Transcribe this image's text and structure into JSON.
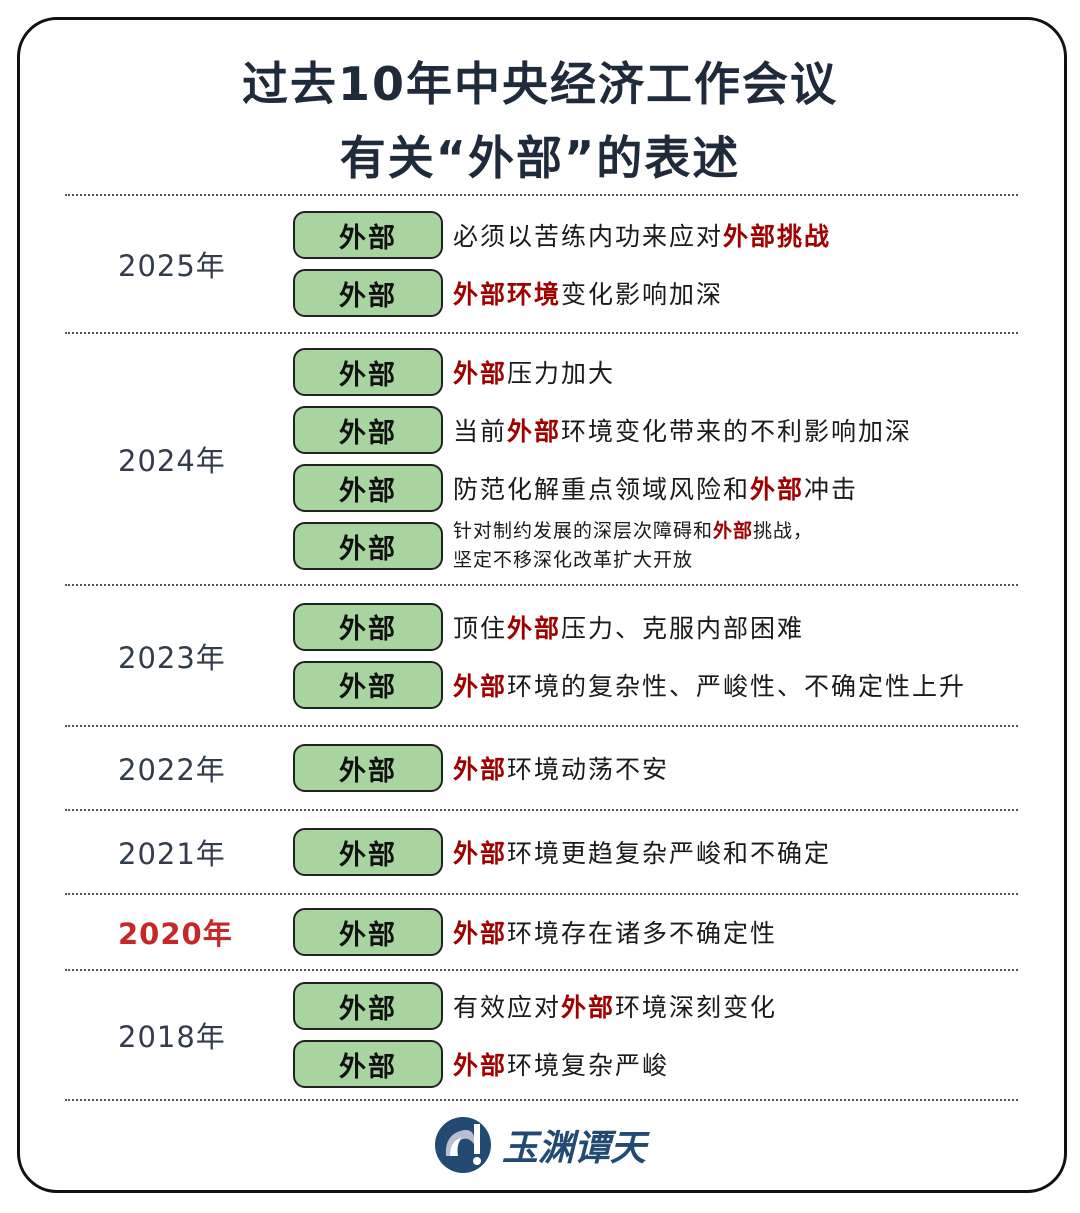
{
  "title": {
    "line1": "过去10年中央经济工作会议",
    "line2": "有关“外部”的表述"
  },
  "tag_label": "外部",
  "colors": {
    "pill": "#a8d4a0",
    "highlight": "#a00000",
    "year_highlight": "#c62828",
    "title": "#1f2a3b",
    "logo": "#234a72"
  },
  "groups": [
    {
      "year": "2025年",
      "items": [
        {
          "segments": [
            {
              "text": "必须以苦练内功来应对"
            },
            {
              "text": "外部挑战",
              "red": true
            }
          ]
        },
        {
          "segments": [
            {
              "text": "外部环境",
              "red": true
            },
            {
              "text": "变化影响加深"
            }
          ]
        }
      ]
    },
    {
      "year": "2024年",
      "items": [
        {
          "segments": [
            {
              "text": "外部",
              "red": true
            },
            {
              "text": "压力加大"
            }
          ]
        },
        {
          "segments": [
            {
              "text": "当前"
            },
            {
              "text": "外部",
              "red": true
            },
            {
              "text": "环境变化带来的不利影响加深"
            }
          ]
        },
        {
          "segments": [
            {
              "text": "防范化解重点领域风险和"
            },
            {
              "text": "外部",
              "red": true
            },
            {
              "text": "冲击"
            }
          ]
        },
        {
          "small": true,
          "segments": [
            {
              "text": "针对制约发展的深层次障碍和"
            },
            {
              "text": "外部",
              "red": true
            },
            {
              "text": "挑战，"
            },
            {
              "text": "坚定不移深化改革扩大开放",
              "newline": true
            }
          ]
        }
      ]
    },
    {
      "year": "2023年",
      "items": [
        {
          "segments": [
            {
              "text": "顶住"
            },
            {
              "text": "外部",
              "red": true
            },
            {
              "text": "压力、克服内部困难"
            }
          ]
        },
        {
          "segments": [
            {
              "text": "外部",
              "red": true
            },
            {
              "text": "环境的复杂性、严峻性、不确定性上升"
            }
          ]
        }
      ]
    },
    {
      "year": "2022年",
      "items": [
        {
          "segments": [
            {
              "text": "外部",
              "red": true
            },
            {
              "text": "环境动荡不安"
            }
          ]
        }
      ]
    },
    {
      "year": "2021年",
      "items": [
        {
          "segments": [
            {
              "text": "外部",
              "red": true
            },
            {
              "text": "环境更趋复杂严峻和不确定"
            }
          ]
        }
      ]
    },
    {
      "year": "2020年",
      "highlight": true,
      "items": [
        {
          "segments": [
            {
              "text": "外部",
              "red": true
            },
            {
              "text": "环境存在诸多不确定性"
            }
          ]
        }
      ]
    },
    {
      "year": "2018年",
      "items": [
        {
          "segments": [
            {
              "text": "有效应对"
            },
            {
              "text": "外部",
              "red": true
            },
            {
              "text": "环境深刻变化"
            }
          ]
        },
        {
          "segments": [
            {
              "text": "外部",
              "red": true
            },
            {
              "text": "环境复杂严峻"
            }
          ]
        }
      ]
    }
  ],
  "logo": {
    "text": "玉渊谭天"
  }
}
